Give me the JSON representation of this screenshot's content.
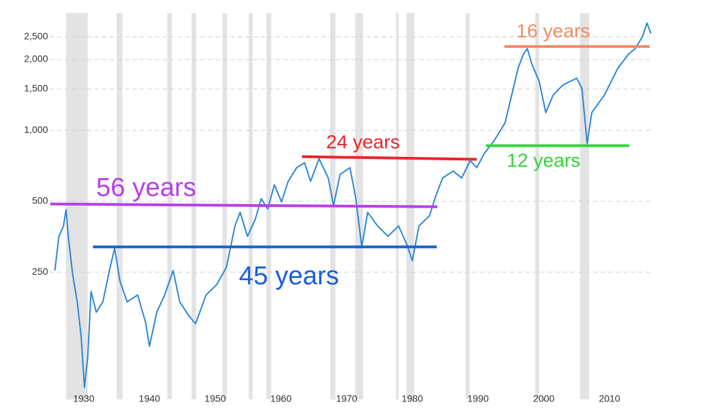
{
  "chart_data": {
    "type": "line",
    "log_scale_y": true,
    "grid": true,
    "xlim": [
      1925.4,
      2016.5
    ],
    "xticks": [
      1930,
      1940,
      1950,
      1960,
      1970,
      1980,
      1990,
      2000,
      2010
    ],
    "ylim": [
      72,
      2950
    ],
    "yticks": [
      250,
      500,
      {
        "value": 1000,
        "label": "1,000"
      },
      {
        "value": 1500,
        "label": "1,500"
      },
      {
        "value": 2000,
        "label": "2,000"
      },
      {
        "value": 2500,
        "label": "2,500"
      }
    ],
    "shade_color": "#e3e3e3",
    "shaded_ranges": [
      [
        1927.3,
        1930.6
      ],
      [
        1935.0,
        1935.9
      ],
      [
        1942.7,
        1943.4
      ],
      [
        1946.4,
        1947.1
      ],
      [
        1951.1,
        1951.8
      ],
      [
        1955.1,
        1955.7
      ],
      [
        1957.8,
        1958.5
      ],
      [
        1967.5,
        1968.3
      ],
      [
        1971.3,
        1972.5
      ],
      [
        1977.5,
        1977.9
      ],
      [
        1979.1,
        1980.3
      ],
      [
        1988.1,
        1988.7
      ],
      [
        1998.7,
        1999.3
      ],
      [
        2005.5,
        2006.9
      ]
    ],
    "series": [
      {
        "color": "#2d86d6",
        "x": [
          1925.6,
          1926.2,
          1926.9,
          1927.3,
          1927.7,
          1928.3,
          1929.0,
          1929.6,
          1930.1,
          1930.6,
          1931.1,
          1931.9,
          1932.9,
          1934.0,
          1934.7,
          1935.5,
          1936.6,
          1938.2,
          1939.4,
          1940.0,
          1941.1,
          1942.3,
          1943.6,
          1944.6,
          1946.0,
          1947.0,
          1948.6,
          1950.2,
          1951.7,
          1953.0,
          1953.8,
          1954.9,
          1956.1,
          1957.0,
          1958.0,
          1959.0,
          1960.1,
          1961.1,
          1962.4,
          1963.6,
          1964.5,
          1965.8,
          1967.2,
          1968.0,
          1969.0,
          1970.5,
          1971.4,
          1972.3,
          1973.2,
          1974.7,
          1976.3,
          1977.9,
          1979.1,
          1980.0,
          1981.0,
          1982.6,
          1983.6,
          1984.6,
          1986.2,
          1987.5,
          1988.8,
          1989.8,
          1990.9,
          1992.5,
          1994.1,
          1995.1,
          1996.1,
          1996.9,
          1997.5,
          1998.2,
          1999.3,
          2000.3,
          2001.4,
          2002.9,
          2005.0,
          2005.8,
          2006.6,
          2007.3,
          2009.2,
          2011.3,
          2012.9,
          2013.9,
          2015.0,
          2015.7,
          2016.3
        ],
        "values": [
          254,
          354,
          392,
          461,
          343,
          245,
          187,
          133,
          81,
          109,
          207,
          169,
          187,
          262,
          316,
          229,
          187,
          200,
          153,
          121,
          169,
          200,
          254,
          187,
          163,
          151,
          200,
          221,
          262,
          393,
          449,
          355,
          420,
          513,
          464,
          587,
          497,
          608,
          695,
          729,
          608,
          759,
          628,
          480,
          650,
          695,
          513,
          320,
          449,
          393,
          355,
          393,
          331,
          280,
          393,
          434,
          531,
          628,
          672,
          628,
          744,
          695,
          796,
          910,
          1077,
          1410,
          1844,
          2110,
          2227,
          1909,
          1614,
          1191,
          1410,
          1560,
          1668,
          1508,
          880,
          1191,
          1410,
          1844,
          2110,
          2227,
          2497,
          2860,
          2580
        ]
      }
    ],
    "annotations": [
      {
        "label": "56 years",
        "color": "#b93ee8",
        "x": [
          1924.9,
          1983.8
        ],
        "values": [
          487,
          474
        ]
      },
      {
        "label": "45 years",
        "color": "#1a5fd6",
        "x": [
          1931.4,
          1983.7
        ],
        "values": [
          320,
          320
        ]
      },
      {
        "label": "24 years",
        "color": "#e8262a",
        "x": [
          1963.2,
          1989.8
        ],
        "values": [
          774,
          754
        ]
      },
      {
        "label": "12 years",
        "color": "#35d33a",
        "x": [
          1991.2,
          2013.0
        ],
        "values": [
          862,
          862
        ]
      },
      {
        "label": "16 years",
        "color": "#f28a64",
        "x": [
          1994.0,
          2016.1
        ],
        "values": [
          2274,
          2274
        ]
      }
    ]
  }
}
